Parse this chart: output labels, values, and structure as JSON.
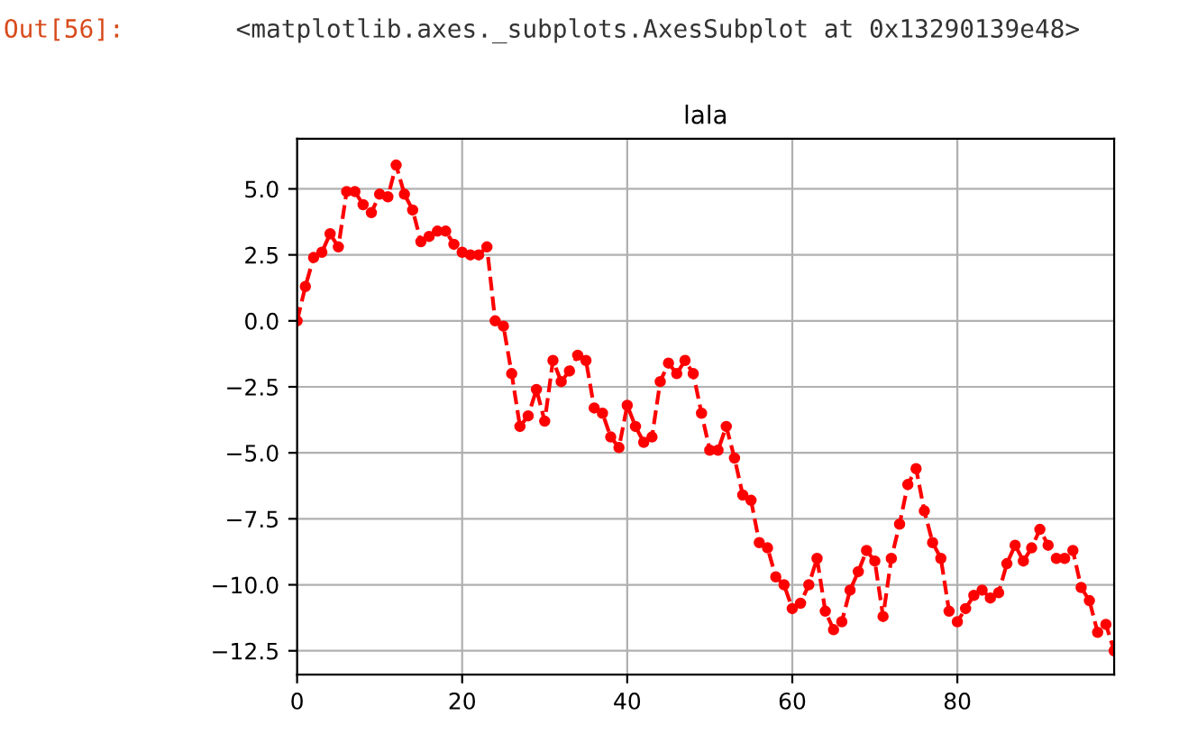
{
  "chart_data": {
    "type": "line",
    "title": "lala",
    "annotations": [
      "Out[56]:",
      "<matplotlib.axes._subplots.AxesSubplot at 0x13290139e48>"
    ],
    "x": [
      0,
      1,
      2,
      3,
      4,
      5,
      6,
      7,
      8,
      9,
      10,
      11,
      12,
      13,
      14,
      15,
      16,
      17,
      18,
      19,
      20,
      21,
      22,
      23,
      24,
      25,
      26,
      27,
      28,
      29,
      30,
      31,
      32,
      33,
      34,
      35,
      36,
      37,
      38,
      39,
      40,
      41,
      42,
      43,
      44,
      45,
      46,
      47,
      48,
      49,
      50,
      51,
      52,
      53,
      54,
      55,
      56,
      57,
      58,
      59,
      60,
      61,
      62,
      63,
      64,
      65,
      66,
      67,
      68,
      69,
      70,
      71,
      72,
      73,
      74,
      75,
      76,
      77,
      78,
      79,
      80,
      81,
      82,
      83,
      84,
      85,
      86,
      87,
      88,
      89,
      90,
      91,
      92,
      93,
      94,
      95,
      96,
      97,
      98,
      99
    ],
    "series": [
      {
        "color": "#ff0000",
        "values": [
          0.0,
          1.3,
          2.4,
          2.6,
          3.3,
          2.8,
          4.9,
          4.9,
          4.4,
          4.1,
          4.8,
          4.7,
          5.9,
          4.8,
          4.2,
          3.0,
          3.2,
          3.4,
          3.4,
          2.9,
          2.6,
          2.5,
          2.5,
          2.8,
          0.0,
          -0.2,
          -2.0,
          -4.0,
          -3.6,
          -2.6,
          -3.8,
          -1.5,
          -2.3,
          -1.9,
          -1.3,
          -1.5,
          -3.3,
          -3.5,
          -4.4,
          -4.8,
          -3.2,
          -4.0,
          -4.6,
          -4.4,
          -2.3,
          -1.6,
          -2.0,
          -1.5,
          -2.0,
          -3.5,
          -4.9,
          -4.9,
          -4.0,
          -5.2,
          -6.6,
          -6.8,
          -8.4,
          -8.6,
          -9.7,
          -10.0,
          -10.9,
          -10.7,
          -10.0,
          -9.0,
          -11.0,
          -11.7,
          -11.4,
          -10.2,
          -9.5,
          -8.7,
          -9.1,
          -11.2,
          -9.0,
          -7.7,
          -6.2,
          -5.6,
          -7.2,
          -8.4,
          -9.0,
          -11.0,
          -11.4,
          -10.9,
          -10.4,
          -10.2,
          -10.5,
          -10.3,
          -9.2,
          -8.5,
          -9.1,
          -8.6,
          -7.9,
          -8.5,
          -9.0,
          -9.0,
          -8.7,
          -10.1,
          -10.6,
          -11.8,
          -11.5,
          -12.5
        ]
      }
    ],
    "xlim": [
      0,
      99
    ],
    "ylim": [
      -13.4,
      6.9
    ],
    "xticks": [
      0,
      20,
      40,
      60,
      80
    ],
    "yticks": [
      {
        "value": 5,
        "label": "5.0"
      },
      {
        "value": 2.5,
        "label": "2.5"
      },
      {
        "value": 0,
        "label": "0.0"
      },
      {
        "value": -2.5,
        "label": "−2.5"
      },
      {
        "value": -5,
        "label": "−5.0"
      },
      {
        "value": -7.5,
        "label": "−7.5"
      },
      {
        "value": -10,
        "label": "−10.0"
      },
      {
        "value": -12.5,
        "label": "−12.5"
      }
    ],
    "grid": true,
    "marker": "circle",
    "line_style": "dashed"
  }
}
